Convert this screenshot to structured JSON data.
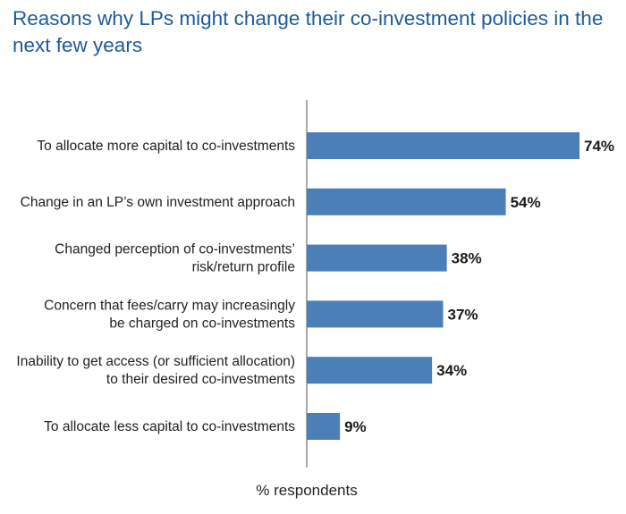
{
  "chart_data": {
    "type": "bar",
    "orientation": "horizontal",
    "title": "Reasons why LPs might change their co-investment policies in the next few years",
    "xlabel": "% respondents",
    "ylabel": "",
    "categories": [
      [
        "To allocate more capital to co-investments"
      ],
      [
        "Change in an LP’s own investment approach"
      ],
      [
        "Changed perception of co-investments’",
        "risk/return profile"
      ],
      [
        "Concern that fees/carry may increasingly",
        "be charged on co-investments"
      ],
      [
        "Inability to get access (or sufficient allocation)",
        "to their desired co-investments"
      ],
      [
        "To allocate less capital to co-investments"
      ]
    ],
    "values": [
      74,
      54,
      38,
      37,
      34,
      9
    ],
    "value_labels": [
      "74%",
      "54%",
      "38%",
      "37%",
      "34%",
      "9%"
    ],
    "xlim": [
      0,
      74
    ],
    "grid": false,
    "legend": "none",
    "bar_color": "#4a7fb8",
    "axis_color": "#555555"
  }
}
